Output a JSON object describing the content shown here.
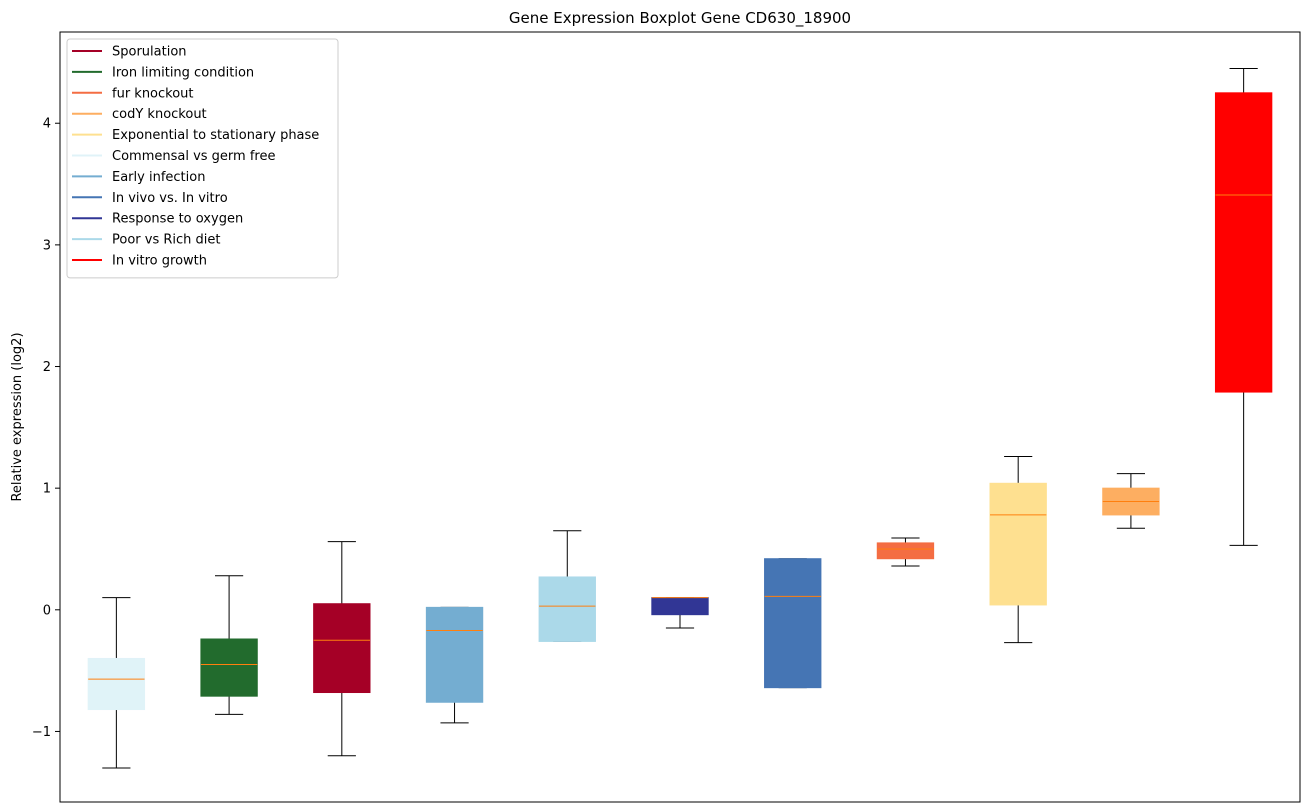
{
  "chart_data": {
    "type": "boxplot",
    "title": "Gene Expression Boxplot Gene CD630_18900",
    "xlabel": "",
    "ylabel": "Relative expression (log2)",
    "ylim": [
      -1.58,
      4.75
    ],
    "yticks": [
      -1,
      0,
      1,
      2,
      3,
      4
    ],
    "ytick_labels": [
      "−1",
      "0",
      "1",
      "2",
      "3",
      "4"
    ],
    "legend_position": "top-left",
    "legend": [
      {
        "label": "Sporulation",
        "color": "#a50026"
      },
      {
        "label": "Iron limiting condition",
        "color": "#226b2d"
      },
      {
        "label": "fur knockout",
        "color": "#f46d43"
      },
      {
        "label": "codY knockout",
        "color": "#fdae61"
      },
      {
        "label": "Exponential to stationary phase",
        "color": "#fee090"
      },
      {
        "label": "Commensal vs germ free",
        "color": "#e0f3f8"
      },
      {
        "label": "Early infection",
        "color": "#74add1"
      },
      {
        "label": "In vivo vs. In vitro",
        "color": "#4575b4"
      },
      {
        "label": "Response to oxygen",
        "color": "#313695"
      },
      {
        "label": "Poor vs Rich diet",
        "color": "#abd9e9"
      },
      {
        "label": "In vitro growth",
        "color": "#ff0000"
      }
    ],
    "median_color": "#ff7f0e",
    "boxes": [
      {
        "group": "Commensal vs germ free",
        "color": "#e0f3f8",
        "whisker_low": -1.3,
        "q1": -0.82,
        "median": -0.57,
        "q3": -0.4,
        "whisker_high": 0.1
      },
      {
        "group": "Iron limiting condition",
        "color": "#226b2d",
        "whisker_low": -0.86,
        "q1": -0.71,
        "median": -0.45,
        "q3": -0.24,
        "whisker_high": 0.28
      },
      {
        "group": "Sporulation",
        "color": "#a50026",
        "whisker_low": -1.2,
        "q1": -0.68,
        "median": -0.25,
        "q3": 0.05,
        "whisker_high": 0.56
      },
      {
        "group": "Early infection",
        "color": "#74add1",
        "whisker_low": -0.93,
        "q1": -0.76,
        "median": -0.17,
        "q3": 0.02,
        "whisker_high": 0.02
      },
      {
        "group": "Poor vs Rich diet",
        "color": "#abd9e9",
        "whisker_low": -0.26,
        "q1": -0.26,
        "median": 0.03,
        "q3": 0.27,
        "whisker_high": 0.65
      },
      {
        "group": "Response to oxygen",
        "color": "#313695",
        "whisker_low": -0.15,
        "q1": -0.04,
        "median": 0.1,
        "q3": 0.1,
        "whisker_high": 0.1
      },
      {
        "group": "In vivo vs. In vitro",
        "color": "#4575b4",
        "whisker_low": -0.64,
        "q1": -0.64,
        "median": 0.11,
        "q3": 0.42,
        "whisker_high": 0.42
      },
      {
        "group": "fur knockout",
        "color": "#f46d43",
        "whisker_low": 0.36,
        "q1": 0.42,
        "median": 0.5,
        "q3": 0.55,
        "whisker_high": 0.59
      },
      {
        "group": "Exponential to stationary phase",
        "color": "#fee090",
        "whisker_low": -0.27,
        "q1": 0.04,
        "median": 0.78,
        "q3": 1.04,
        "whisker_high": 1.26
      },
      {
        "group": "codY knockout",
        "color": "#fdae61",
        "whisker_low": 0.67,
        "q1": 0.78,
        "median": 0.89,
        "q3": 1.0,
        "whisker_high": 1.12
      },
      {
        "group": "In vitro growth",
        "color": "#ff0000",
        "whisker_low": 0.53,
        "q1": 1.79,
        "median": 3.41,
        "q3": 4.25,
        "whisker_high": 4.45
      }
    ]
  }
}
